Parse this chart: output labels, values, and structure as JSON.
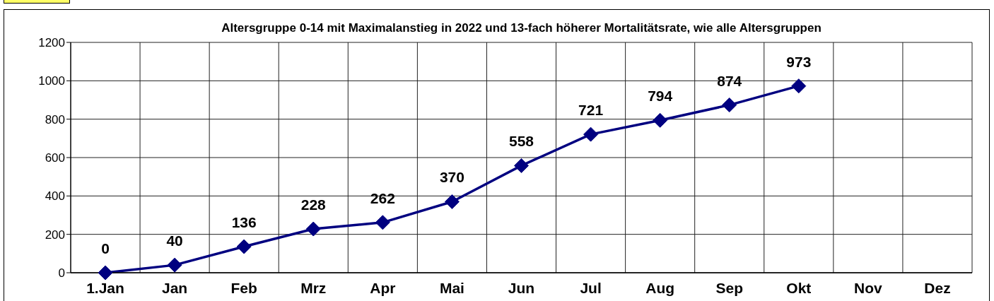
{
  "chart_data": {
    "type": "line",
    "title": "Altersgruppe 0-14 mit Maximalanstieg in 2022 und 13-fach höherer Mortalitätsrate, wie alle Altersgruppen",
    "categories": [
      "1.Jan",
      "Jan",
      "Feb",
      "Mrz",
      "Apr",
      "Mai",
      "Jun",
      "Jul",
      "Aug",
      "Sep",
      "Okt",
      "Nov",
      "Dez"
    ],
    "values": [
      0,
      40,
      136,
      228,
      262,
      370,
      558,
      721,
      794,
      874,
      973,
      null,
      null
    ],
    "color": "#000080",
    "ylim": [
      0,
      1200
    ],
    "yticks": [
      0,
      200,
      400,
      600,
      800,
      1000,
      1200
    ],
    "grid": true,
    "marker": "diamond",
    "line_style": "solid",
    "data_labels": true
  }
}
